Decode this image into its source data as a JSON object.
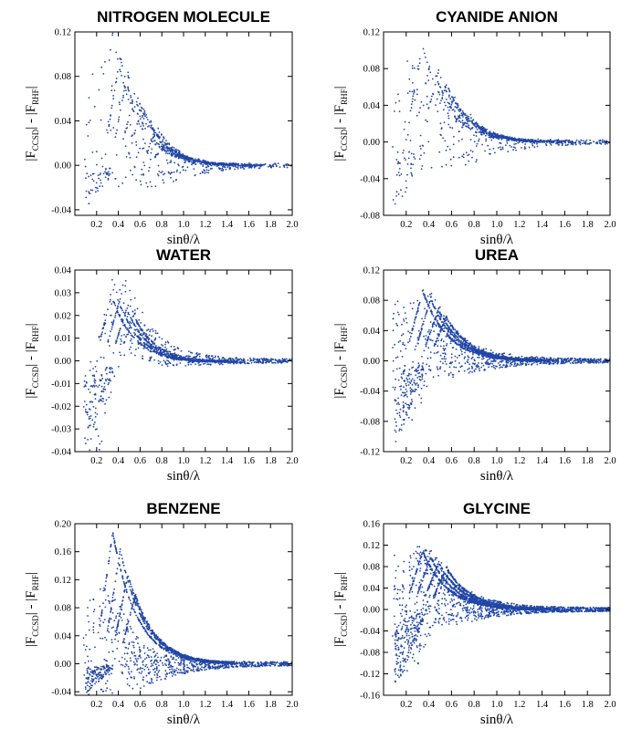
{
  "ylabel": {
    "prefix": "|F",
    "sub1": "CCSD",
    "middle": "| - |F",
    "sub2": "RHF",
    "suffix": "|"
  },
  "chart_data": [
    {
      "type": "scatter",
      "title": "NITROGEN MOLECULE",
      "xlabel": "sinθ/λ",
      "xlim": [
        0,
        2.0
      ],
      "ylim": [
        -0.045,
        0.12
      ],
      "xticks": [
        "0.2",
        "0.4",
        "0.6",
        "0.8",
        "1.0",
        "1.2",
        "1.4",
        "1.6",
        "1.8",
        "2.0"
      ],
      "yticks": [
        "-0.04",
        "0.00",
        "0.04",
        "0.08",
        "0.12"
      ],
      "x": [
        0.15,
        0.2,
        0.25,
        0.3,
        0.35,
        0.4,
        0.5,
        0.6,
        0.8,
        1.0,
        1.4,
        2.0
      ],
      "y": [
        0.02,
        0.033,
        0.037,
        0.035,
        0.03,
        0.024,
        0.012,
        0.003,
        -0.006,
        -0.004,
        -0.001,
        0.0
      ],
      "peaks": [
        0.12,
        0.1,
        0.085,
        0.07,
        0.055,
        0.04,
        0.035,
        0.02
      ],
      "dense": 1
    },
    {
      "type": "scatter",
      "title": "CYANIDE ANION",
      "xlabel": "sinθ/λ",
      "xlim": [
        0,
        2.0
      ],
      "ylim": [
        -0.08,
        0.12
      ],
      "xticks": [
        "0.2",
        "0.4",
        "0.6",
        "0.8",
        "1.0",
        "1.2",
        "1.4",
        "1.6",
        "1.8",
        "2.0"
      ],
      "yticks": [
        "-0.08",
        "-0.04",
        "0.00",
        "0.04",
        "0.08",
        "0.12"
      ],
      "x": [
        0.15,
        0.2,
        0.25,
        0.3,
        0.35,
        0.4,
        0.5,
        0.6,
        0.8,
        1.0,
        1.4,
        2.0
      ],
      "y": [
        0.0,
        0.02,
        0.03,
        0.028,
        0.022,
        0.015,
        0.005,
        -0.003,
        -0.008,
        -0.004,
        -0.001,
        0.0
      ],
      "peaks": [
        0.105,
        0.09,
        0.08,
        0.065,
        0.05,
        0.035,
        0.03
      ],
      "dense": 1
    },
    {
      "type": "scatter",
      "title": "WATER",
      "xlabel": "sinθ/λ",
      "xlim": [
        0,
        2.0
      ],
      "ylim": [
        -0.04,
        0.04
      ],
      "xticks": [
        "0.2",
        "0.4",
        "0.6",
        "0.8",
        "1.0",
        "1.2",
        "1.4",
        "1.6",
        "1.8",
        "2.0"
      ],
      "yticks": [
        "-0.04",
        "-0.03",
        "-0.02",
        "-0.01",
        "0.00",
        "0.01",
        "0.02",
        "0.03",
        "0.04"
      ],
      "x": [
        0.1,
        0.15,
        0.2,
        0.25,
        0.3,
        0.35,
        0.4,
        0.45,
        0.5,
        0.6,
        0.8,
        1.0,
        1.4,
        2.0
      ],
      "y": [
        -0.02,
        -0.03,
        -0.022,
        -0.01,
        0.002,
        0.012,
        0.018,
        0.02,
        0.018,
        0.012,
        0.004,
        0.001,
        0.0,
        0.0
      ],
      "peaks": [
        0.031,
        0.028,
        0.025,
        0.022
      ],
      "dense": 2
    },
    {
      "type": "scatter",
      "title": "UREA",
      "xlabel": "sinθ/λ",
      "xlim": [
        0,
        2.0
      ],
      "ylim": [
        -0.12,
        0.12
      ],
      "xticks": [
        "0.2",
        "0.4",
        "0.6",
        "0.8",
        "1.0",
        "1.2",
        "1.4",
        "1.6",
        "1.8",
        "2.0"
      ],
      "yticks": [
        "-0.12",
        "-0.08",
        "-0.04",
        "0.00",
        "0.04",
        "0.08",
        "0.12"
      ],
      "x": [
        0.1,
        0.15,
        0.2,
        0.25,
        0.3,
        0.35,
        0.4,
        0.45,
        0.5,
        0.6,
        0.8,
        1.0,
        1.4,
        2.0
      ],
      "y": [
        0.0,
        -0.01,
        -0.01,
        0.0,
        0.01,
        0.02,
        0.03,
        0.03,
        0.025,
        0.012,
        0.003,
        0.001,
        0.0,
        0.0
      ],
      "peaks": [
        0.095,
        0.085,
        0.07,
        0.06
      ],
      "dense": 3
    },
    {
      "type": "scatter",
      "title": "BENZENE",
      "xlabel": "sinθ/λ",
      "xlim": [
        0,
        2.0
      ],
      "ylim": [
        -0.045,
        0.2
      ],
      "xticks": [
        "0.2",
        "0.4",
        "0.6",
        "0.8",
        "1.0",
        "1.2",
        "1.4",
        "1.6",
        "1.8",
        "2.0"
      ],
      "yticks": [
        "-0.04",
        "0.00",
        "0.04",
        "0.08",
        "0.12",
        "0.16",
        "0.20"
      ],
      "x": [
        0.1,
        0.15,
        0.2,
        0.25,
        0.3,
        0.35,
        0.4,
        0.45,
        0.5,
        0.6,
        0.8,
        1.0,
        1.4,
        2.0
      ],
      "y": [
        0.0,
        0.01,
        0.02,
        0.025,
        0.02,
        0.02,
        0.03,
        0.02,
        0.01,
        0.0,
        -0.005,
        -0.003,
        -0.001,
        0.0
      ],
      "peaks": [
        0.19,
        0.165,
        0.13,
        0.1
      ],
      "dense": 3
    },
    {
      "type": "scatter",
      "title": "GLYCINE",
      "xlabel": "sinθ/λ",
      "xlim": [
        0,
        2.0
      ],
      "ylim": [
        -0.16,
        0.16
      ],
      "xticks": [
        "0.2",
        "0.4",
        "0.6",
        "0.8",
        "1.0",
        "1.2",
        "1.4",
        "1.6",
        "1.8",
        "2.0"
      ],
      "yticks": [
        "-0.16",
        "-0.12",
        "-0.08",
        "-0.04",
        "0.00",
        "0.04",
        "0.08",
        "0.12",
        "0.16"
      ],
      "x": [
        0.1,
        0.15,
        0.2,
        0.25,
        0.3,
        0.35,
        0.4,
        0.45,
        0.5,
        0.6,
        0.8,
        1.0,
        1.4,
        2.0
      ],
      "y": [
        0.0,
        -0.01,
        -0.01,
        0.0,
        0.01,
        0.02,
        0.03,
        0.035,
        0.03,
        0.015,
        0.004,
        0.001,
        0.0,
        0.0
      ],
      "peaks": [
        0.11,
        0.1,
        0.09,
        0.08
      ],
      "dense": 4
    }
  ]
}
